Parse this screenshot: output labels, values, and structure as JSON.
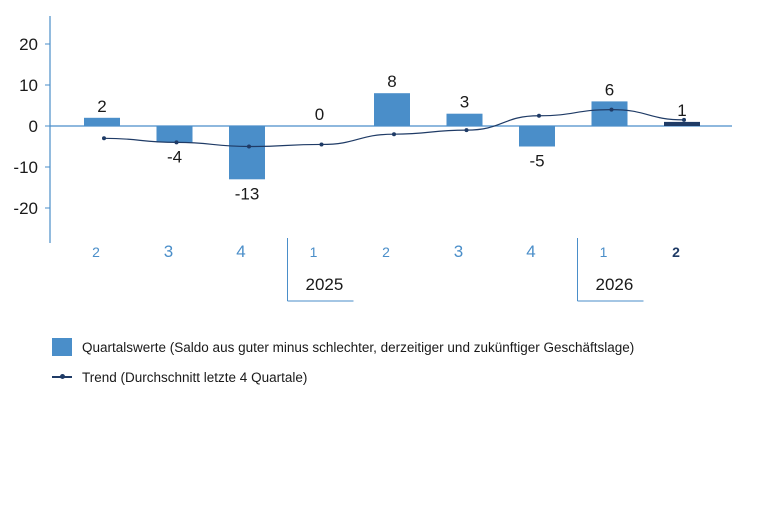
{
  "chart_data": {
    "type": "bar",
    "categories": [
      "2",
      "3",
      "4",
      "1",
      "2",
      "3",
      "4",
      "1",
      "2"
    ],
    "values": [
      2,
      -4,
      -13,
      0,
      8,
      3,
      -5,
      6,
      1
    ],
    "value_labels": [
      "2",
      "-4",
      "-13",
      "0",
      "8",
      "3",
      "-5",
      "6",
      "1"
    ],
    "trend": [
      -3,
      -4,
      -5,
      -4.5,
      -2,
      -1,
      2.5,
      4,
      1.5
    ],
    "years": [
      {
        "label": "2025",
        "start_index": 3
      },
      {
        "label": "2026",
        "start_index": 7
      }
    ],
    "yticks": [
      "20",
      "10",
      "0",
      "-10",
      "-20"
    ],
    "ylim": [
      -28,
      25
    ],
    "title": "",
    "xlabel": "",
    "ylabel": "",
    "colors": {
      "bar": "#4a8ec9",
      "bar_last": "#1f3b66",
      "trend": "#1f3b66",
      "axis": "#4a8ec9"
    },
    "legend": {
      "bars": "Quartalswerte (Saldo aus guter minus schlechter, derzeitiger und zukünftiger Geschäftslage)",
      "trend": "Trend (Durchschnitt letzte 4 Quartale)"
    }
  }
}
